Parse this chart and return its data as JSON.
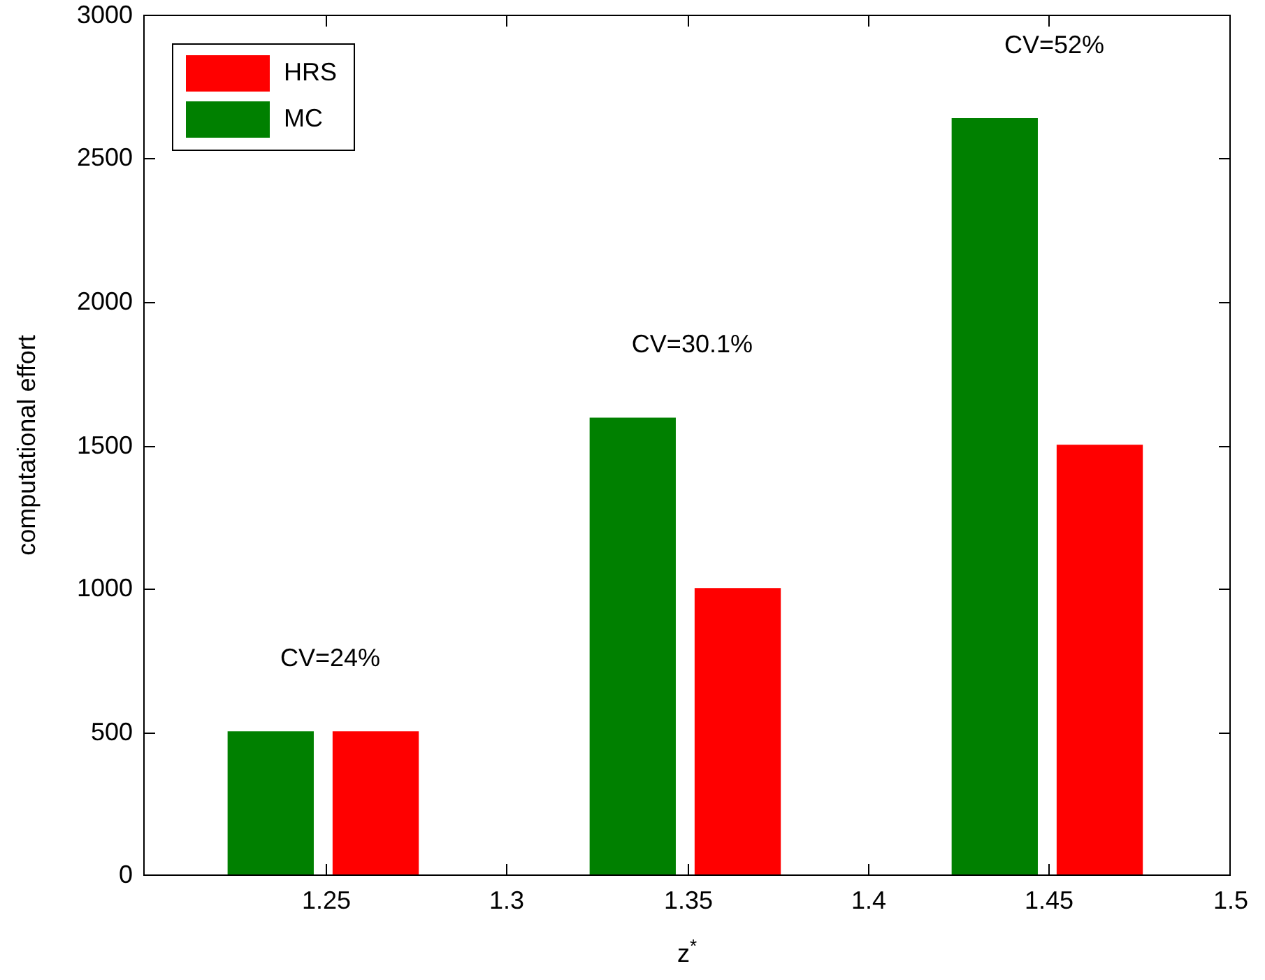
{
  "chart_data": {
    "type": "bar",
    "xlabel": "z$^{*}$",
    "ylabel": "computational effort",
    "xlim": [
      1.2,
      1.5
    ],
    "xticks": [
      1.25,
      1.3,
      1.35,
      1.4,
      1.45,
      1.5
    ],
    "ylim": [
      0,
      3000
    ],
    "yticks": [
      0,
      500,
      1000,
      1500,
      2000,
      2500,
      3000
    ],
    "legend": "top left",
    "grid": false,
    "series": [
      {
        "name": "HRS",
        "color": "#ff0000",
        "x": [
          1.264,
          1.364,
          1.464
        ],
        "values": [
          500,
          1000,
          1500
        ]
      },
      {
        "name": "MC",
        "color": "#008000",
        "x": [
          1.235,
          1.335,
          1.435
        ],
        "values": [
          500,
          1595,
          2640
        ]
      }
    ],
    "annotations": [
      "CV=24%",
      "CV=30.1%",
      "CV=52%"
    ]
  }
}
